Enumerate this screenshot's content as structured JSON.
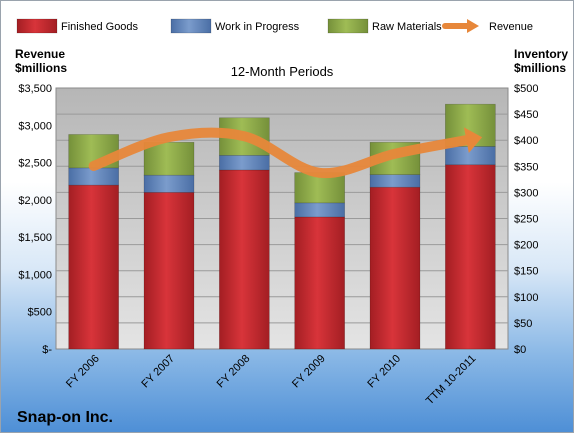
{
  "chart_data": {
    "type": "bar",
    "stacked": true,
    "title": "12-Month Periods",
    "company": "Snap-on Inc.",
    "ylabel_left": [
      "Revenue",
      "$millions"
    ],
    "ylabel_right": [
      "Inventory",
      "$millions"
    ],
    "categories": [
      "FY 2006",
      "FY 2007",
      "FY 2008",
      "FY 2009",
      "FY 2010",
      "TTM 10-2011"
    ],
    "series": [
      {
        "name": "Finished Goods",
        "color": "#c0262c",
        "axis": "right",
        "values": [
          314,
          300,
          343,
          253,
          310,
          353
        ]
      },
      {
        "name": "Work in Progress",
        "color": "#5b7fb6",
        "axis": "right",
        "values": [
          33,
          33,
          28,
          27,
          24,
          35
        ]
      },
      {
        "name": "Raw Materials",
        "color": "#8aa544",
        "axis": "right",
        "values": [
          64,
          63,
          72,
          58,
          62,
          81
        ]
      },
      {
        "name": "Revenue",
        "color": "#e7873a",
        "axis": "left",
        "type": "line",
        "values": [
          2455,
          2841,
          2853,
          2363,
          2619,
          2810
        ]
      }
    ],
    "ylim_left": [
      0,
      3500
    ],
    "ylim_right": [
      0,
      500
    ],
    "yticks_left": [
      "$-",
      "$500",
      "$1,000",
      "$1,500",
      "$2,000",
      "$2,500",
      "$3,000",
      "$3,500"
    ],
    "yticks_right": [
      "$0",
      "$50",
      "$100",
      "$150",
      "$200",
      "$250",
      "$300",
      "$350",
      "$400",
      "$450",
      "$500"
    ],
    "grid": true,
    "legend_position": "top"
  }
}
